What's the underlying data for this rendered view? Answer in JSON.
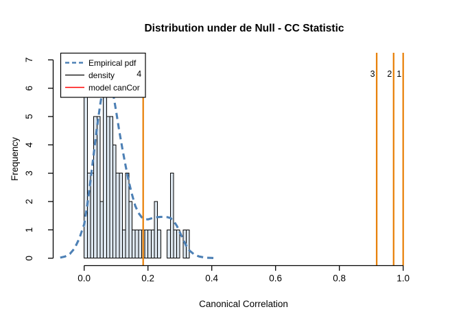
{
  "chart_data": {
    "type": "bar",
    "subtype": "histogram_with_density_overlay",
    "title": "Distribution under de Null - CC Statistic",
    "xlabel": "Canonical Correlation",
    "ylabel": "Frequency",
    "x_axis": {
      "ticks": [
        0.0,
        0.2,
        0.4,
        0.6,
        0.8,
        1.0
      ],
      "tick_labels": [
        "0.0",
        "0.2",
        "0.4",
        "0.6",
        "0.8",
        "1.0"
      ],
      "range": [
        -0.098,
        1.04
      ]
    },
    "y_axis": {
      "ticks": [
        0,
        1,
        2,
        3,
        4,
        5,
        6,
        7
      ],
      "tick_labels": [
        "0",
        "1",
        "2",
        "3",
        "4",
        "5",
        "6",
        "7"
      ],
      "range": [
        0,
        7.3
      ]
    },
    "histogram": {
      "bin_start": 0.0,
      "bin_width": 0.01,
      "frequencies": [
        6,
        3,
        3,
        5,
        5,
        2,
        6,
        5,
        5,
        4,
        3,
        3,
        1,
        3,
        2,
        1,
        1,
        1,
        1,
        1,
        1,
        1,
        2,
        1,
        0,
        0,
        1,
        3,
        1,
        1,
        0,
        1,
        1
      ],
      "bar_fill": "#DCE6EF",
      "bar_stroke": "#000000"
    },
    "density_curve": {
      "name": "Empirical pdf",
      "color": "#4D80B5",
      "line_style": "dashed",
      "x": [
        -0.075,
        -0.06,
        -0.045,
        -0.03,
        -0.015,
        0.0,
        0.01,
        0.02,
        0.03,
        0.04,
        0.05,
        0.055,
        0.06,
        0.07,
        0.08,
        0.085,
        0.09,
        0.1,
        0.11,
        0.12,
        0.13,
        0.14,
        0.15,
        0.16,
        0.17,
        0.18,
        0.19,
        0.2,
        0.21,
        0.22,
        0.23,
        0.24,
        0.25,
        0.26,
        0.27,
        0.28,
        0.29,
        0.3,
        0.31,
        0.32,
        0.33,
        0.345,
        0.36,
        0.38,
        0.4,
        0.415
      ],
      "y": [
        0.02,
        0.06,
        0.15,
        0.35,
        0.7,
        1.2,
        1.9,
        2.75,
        3.7,
        4.6,
        5.4,
        5.75,
        6.0,
        6.3,
        6.25,
        6.1,
        5.85,
        5.2,
        4.5,
        3.85,
        3.25,
        2.7,
        2.25,
        1.85,
        1.6,
        1.45,
        1.38,
        1.37,
        1.4,
        1.43,
        1.45,
        1.46,
        1.46,
        1.45,
        1.42,
        1.32,
        1.15,
        0.92,
        0.66,
        0.44,
        0.27,
        0.13,
        0.06,
        0.02,
        0.01,
        0.0
      ]
    },
    "vlines": {
      "color": "#E8820C",
      "items": [
        {
          "x": 0.185,
          "label": "4"
        },
        {
          "x": 0.917,
          "label": "3"
        },
        {
          "x": 0.97,
          "label": "2"
        },
        {
          "x": 1.0,
          "label": "1"
        }
      ]
    },
    "legend": {
      "position": "topleft",
      "entries": [
        {
          "label": "Empirical pdf",
          "color": "#4D80B5",
          "dashed": true,
          "width": 2.5
        },
        {
          "label": "density",
          "color": "#000000",
          "dashed": false,
          "width": 1.3
        },
        {
          "label": "model canCor",
          "color": "#FF0000",
          "dashed": false,
          "width": 1.5
        }
      ]
    },
    "grid": false,
    "colors": {
      "curve_blue": "#4D80B5",
      "vline_orange": "#E8820C",
      "bar_fill": "#DCE6EF",
      "text": "#000000"
    }
  }
}
